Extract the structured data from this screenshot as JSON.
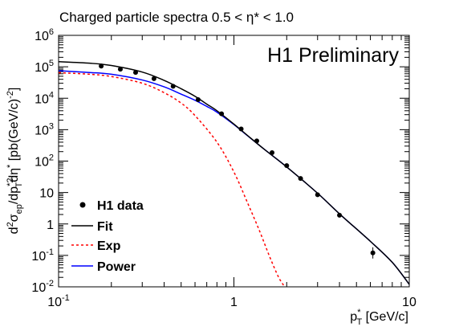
{
  "chart_data": {
    "type": "scatter",
    "title": "Charged particle spectra 0.5 < η* < 1.0",
    "annotation": "H1 Preliminary",
    "xlabel": "p*T [GeV/c]",
    "ylabel": "d²σep/dp*T²dη* [pb(GeV/c)⁻²]",
    "x_scale": "log",
    "y_scale": "log",
    "xlim": [
      0.1,
      10
    ],
    "ylim": [
      0.01,
      1000000
    ],
    "x_ticks": [
      "10^-1",
      "1",
      "10"
    ],
    "y_ticks": [
      "10^-2",
      "10^-1",
      "1",
      "10",
      "10^2",
      "10^3",
      "10^4",
      "10^5",
      "10^6"
    ],
    "grid": false,
    "legend_position": "bottom-left",
    "legend": [
      {
        "label": "H1 data",
        "style": "marker",
        "color": "#000000"
      },
      {
        "label": "Fit",
        "style": "solid",
        "color": "#000000"
      },
      {
        "label": "Exp",
        "style": "dashed",
        "color": "#ff0000"
      },
      {
        "label": "Power",
        "style": "solid",
        "color": "#0000ff"
      }
    ],
    "series": [
      {
        "name": "H1 data",
        "kind": "points",
        "color": "#000000",
        "x": [
          0.175,
          0.225,
          0.275,
          0.35,
          0.45,
          0.625,
          0.85,
          1.1,
          1.35,
          1.65,
          2.0,
          2.4,
          3.0,
          4.0,
          6.2
        ],
        "y": [
          105000,
          84000,
          66000,
          42000,
          24000,
          9000,
          3200,
          1050,
          440,
          185,
          72,
          28,
          8.5,
          1.9,
          0.12
        ]
      },
      {
        "name": "Fit",
        "kind": "line",
        "color": "#000000",
        "x": [
          0.1,
          0.15,
          0.2,
          0.3,
          0.4,
          0.5,
          0.6,
          0.7,
          0.8,
          1.0,
          1.2,
          1.5,
          2.0,
          3.0,
          4.0,
          6.0,
          8.0,
          10.0
        ],
        "y": [
          145000,
          130000,
          110000,
          68000,
          37000,
          20000,
          11500,
          6500,
          4000,
          1500,
          640,
          230,
          65,
          9.5,
          2.1,
          0.28,
          0.06,
          0.012
        ]
      },
      {
        "name": "Exp",
        "kind": "line",
        "dashed": true,
        "color": "#ff0000",
        "x": [
          0.1,
          0.15,
          0.2,
          0.3,
          0.4,
          0.5,
          0.6,
          0.8,
          1.0,
          1.2,
          1.4,
          1.6,
          1.8,
          1.95
        ],
        "y": [
          65000,
          58000,
          49000,
          30000,
          15000,
          7000,
          2800,
          400,
          45,
          4.5,
          0.6,
          0.09,
          0.02,
          0.01
        ]
      },
      {
        "name": "Power",
        "kind": "line",
        "color": "#0000ff",
        "x": [
          0.1,
          0.15,
          0.2,
          0.3,
          0.4,
          0.5,
          0.6,
          0.7,
          0.8,
          1.0,
          1.2,
          1.5,
          2.0,
          3.0,
          4.0,
          6.0,
          8.0,
          10.0
        ],
        "y": [
          75000,
          66000,
          58000,
          38000,
          23000,
          13500,
          8600,
          5500,
          3600,
          1450,
          630,
          230,
          65,
          9.5,
          2.1,
          0.28,
          0.06,
          0.012
        ]
      }
    ]
  }
}
